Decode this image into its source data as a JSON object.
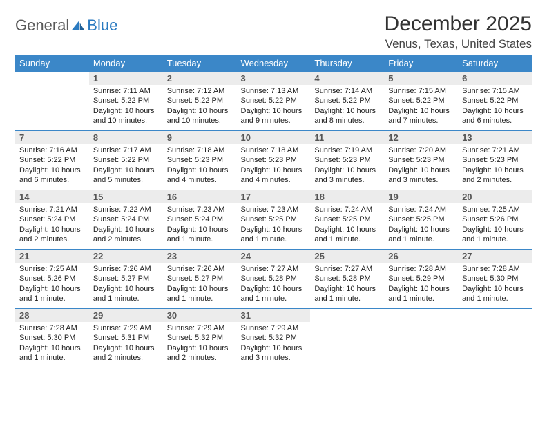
{
  "logo": {
    "part1": "General",
    "part2": "Blue"
  },
  "title": "December 2025",
  "location": "Venus, Texas, United States",
  "colors": {
    "header_bg": "#3b87c8",
    "header_text": "#ffffff",
    "daynum_bg": "#ececec",
    "row_border": "#3b87c8",
    "logo_gray": "#5a5a5a",
    "logo_blue": "#2a7ac0"
  },
  "weekdays": [
    "Sunday",
    "Monday",
    "Tuesday",
    "Wednesday",
    "Thursday",
    "Friday",
    "Saturday"
  ],
  "days": [
    {
      "n": "",
      "sunrise": "",
      "sunset": "",
      "daylight": ""
    },
    {
      "n": "1",
      "sunrise": "Sunrise: 7:11 AM",
      "sunset": "Sunset: 5:22 PM",
      "daylight": "Daylight: 10 hours and 10 minutes."
    },
    {
      "n": "2",
      "sunrise": "Sunrise: 7:12 AM",
      "sunset": "Sunset: 5:22 PM",
      "daylight": "Daylight: 10 hours and 10 minutes."
    },
    {
      "n": "3",
      "sunrise": "Sunrise: 7:13 AM",
      "sunset": "Sunset: 5:22 PM",
      "daylight": "Daylight: 10 hours and 9 minutes."
    },
    {
      "n": "4",
      "sunrise": "Sunrise: 7:14 AM",
      "sunset": "Sunset: 5:22 PM",
      "daylight": "Daylight: 10 hours and 8 minutes."
    },
    {
      "n": "5",
      "sunrise": "Sunrise: 7:15 AM",
      "sunset": "Sunset: 5:22 PM",
      "daylight": "Daylight: 10 hours and 7 minutes."
    },
    {
      "n": "6",
      "sunrise": "Sunrise: 7:15 AM",
      "sunset": "Sunset: 5:22 PM",
      "daylight": "Daylight: 10 hours and 6 minutes."
    },
    {
      "n": "7",
      "sunrise": "Sunrise: 7:16 AM",
      "sunset": "Sunset: 5:22 PM",
      "daylight": "Daylight: 10 hours and 6 minutes."
    },
    {
      "n": "8",
      "sunrise": "Sunrise: 7:17 AM",
      "sunset": "Sunset: 5:22 PM",
      "daylight": "Daylight: 10 hours and 5 minutes."
    },
    {
      "n": "9",
      "sunrise": "Sunrise: 7:18 AM",
      "sunset": "Sunset: 5:23 PM",
      "daylight": "Daylight: 10 hours and 4 minutes."
    },
    {
      "n": "10",
      "sunrise": "Sunrise: 7:18 AM",
      "sunset": "Sunset: 5:23 PM",
      "daylight": "Daylight: 10 hours and 4 minutes."
    },
    {
      "n": "11",
      "sunrise": "Sunrise: 7:19 AM",
      "sunset": "Sunset: 5:23 PM",
      "daylight": "Daylight: 10 hours and 3 minutes."
    },
    {
      "n": "12",
      "sunrise": "Sunrise: 7:20 AM",
      "sunset": "Sunset: 5:23 PM",
      "daylight": "Daylight: 10 hours and 3 minutes."
    },
    {
      "n": "13",
      "sunrise": "Sunrise: 7:21 AM",
      "sunset": "Sunset: 5:23 PM",
      "daylight": "Daylight: 10 hours and 2 minutes."
    },
    {
      "n": "14",
      "sunrise": "Sunrise: 7:21 AM",
      "sunset": "Sunset: 5:24 PM",
      "daylight": "Daylight: 10 hours and 2 minutes."
    },
    {
      "n": "15",
      "sunrise": "Sunrise: 7:22 AM",
      "sunset": "Sunset: 5:24 PM",
      "daylight": "Daylight: 10 hours and 2 minutes."
    },
    {
      "n": "16",
      "sunrise": "Sunrise: 7:23 AM",
      "sunset": "Sunset: 5:24 PM",
      "daylight": "Daylight: 10 hours and 1 minute."
    },
    {
      "n": "17",
      "sunrise": "Sunrise: 7:23 AM",
      "sunset": "Sunset: 5:25 PM",
      "daylight": "Daylight: 10 hours and 1 minute."
    },
    {
      "n": "18",
      "sunrise": "Sunrise: 7:24 AM",
      "sunset": "Sunset: 5:25 PM",
      "daylight": "Daylight: 10 hours and 1 minute."
    },
    {
      "n": "19",
      "sunrise": "Sunrise: 7:24 AM",
      "sunset": "Sunset: 5:25 PM",
      "daylight": "Daylight: 10 hours and 1 minute."
    },
    {
      "n": "20",
      "sunrise": "Sunrise: 7:25 AM",
      "sunset": "Sunset: 5:26 PM",
      "daylight": "Daylight: 10 hours and 1 minute."
    },
    {
      "n": "21",
      "sunrise": "Sunrise: 7:25 AM",
      "sunset": "Sunset: 5:26 PM",
      "daylight": "Daylight: 10 hours and 1 minute."
    },
    {
      "n": "22",
      "sunrise": "Sunrise: 7:26 AM",
      "sunset": "Sunset: 5:27 PM",
      "daylight": "Daylight: 10 hours and 1 minute."
    },
    {
      "n": "23",
      "sunrise": "Sunrise: 7:26 AM",
      "sunset": "Sunset: 5:27 PM",
      "daylight": "Daylight: 10 hours and 1 minute."
    },
    {
      "n": "24",
      "sunrise": "Sunrise: 7:27 AM",
      "sunset": "Sunset: 5:28 PM",
      "daylight": "Daylight: 10 hours and 1 minute."
    },
    {
      "n": "25",
      "sunrise": "Sunrise: 7:27 AM",
      "sunset": "Sunset: 5:28 PM",
      "daylight": "Daylight: 10 hours and 1 minute."
    },
    {
      "n": "26",
      "sunrise": "Sunrise: 7:28 AM",
      "sunset": "Sunset: 5:29 PM",
      "daylight": "Daylight: 10 hours and 1 minute."
    },
    {
      "n": "27",
      "sunrise": "Sunrise: 7:28 AM",
      "sunset": "Sunset: 5:30 PM",
      "daylight": "Daylight: 10 hours and 1 minute."
    },
    {
      "n": "28",
      "sunrise": "Sunrise: 7:28 AM",
      "sunset": "Sunset: 5:30 PM",
      "daylight": "Daylight: 10 hours and 1 minute."
    },
    {
      "n": "29",
      "sunrise": "Sunrise: 7:29 AM",
      "sunset": "Sunset: 5:31 PM",
      "daylight": "Daylight: 10 hours and 2 minutes."
    },
    {
      "n": "30",
      "sunrise": "Sunrise: 7:29 AM",
      "sunset": "Sunset: 5:32 PM",
      "daylight": "Daylight: 10 hours and 2 minutes."
    },
    {
      "n": "31",
      "sunrise": "Sunrise: 7:29 AM",
      "sunset": "Sunset: 5:32 PM",
      "daylight": "Daylight: 10 hours and 3 minutes."
    },
    {
      "n": "",
      "sunrise": "",
      "sunset": "",
      "daylight": ""
    },
    {
      "n": "",
      "sunrise": "",
      "sunset": "",
      "daylight": ""
    },
    {
      "n": "",
      "sunrise": "",
      "sunset": "",
      "daylight": ""
    }
  ]
}
